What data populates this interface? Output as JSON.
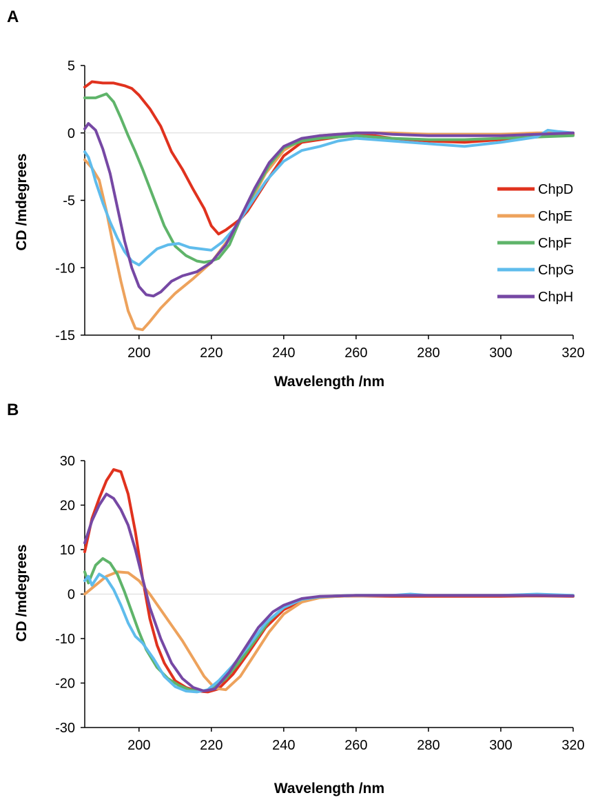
{
  "chart_data": [
    {
      "panel_label": "A",
      "type": "line",
      "xlabel": "Wavelength /nm",
      "ylabel": "CD /mdegrees",
      "xlim": [
        185,
        320
      ],
      "ylim": [
        -15,
        5
      ],
      "xticks": [
        200,
        220,
        240,
        260,
        280,
        300,
        320
      ],
      "yticks": [
        -15,
        -10,
        -5,
        0,
        5
      ],
      "grid": false,
      "legend": {
        "placement": "right"
      },
      "series": [
        {
          "name": "ChpD",
          "color": "#e0321e",
          "x": [
            185,
            187,
            190,
            193,
            196,
            198,
            200,
            203,
            206,
            209,
            212,
            215,
            218,
            220,
            222,
            224,
            226,
            228,
            230,
            235,
            240,
            245,
            250,
            255,
            260,
            265,
            270,
            280,
            290,
            300,
            310,
            320
          ],
          "y": [
            3.4,
            3.8,
            3.7,
            3.7,
            3.5,
            3.3,
            2.8,
            1.8,
            0.5,
            -1.4,
            -2.7,
            -4.2,
            -5.6,
            -6.9,
            -7.5,
            -7.2,
            -6.8,
            -6.4,
            -5.8,
            -3.7,
            -1.7,
            -0.7,
            -0.5,
            -0.3,
            -0.1,
            -0.2,
            -0.4,
            -0.6,
            -0.7,
            -0.5,
            -0.3,
            -0.1
          ]
        },
        {
          "name": "ChpE",
          "color": "#eda25c",
          "x": [
            185,
            187,
            189,
            191,
            193,
            195,
            197,
            199,
            201,
            203,
            206,
            210,
            215,
            220,
            225,
            230,
            235,
            240,
            245,
            250,
            255,
            260,
            270,
            280,
            290,
            300,
            310,
            320
          ],
          "y": [
            -2.0,
            -2.6,
            -3.5,
            -5.8,
            -8.5,
            -11.0,
            -13.2,
            -14.5,
            -14.6,
            -14.0,
            -13.0,
            -11.9,
            -10.8,
            -9.6,
            -7.8,
            -5.5,
            -3.0,
            -1.3,
            -0.5,
            -0.2,
            -0.1,
            0.0,
            0.0,
            -0.1,
            -0.1,
            -0.1,
            0.0,
            0.0
          ]
        },
        {
          "name": "ChpF",
          "color": "#5fb46a",
          "x": [
            185,
            188,
            191,
            193,
            195,
            197,
            199,
            201,
            204,
            207,
            210,
            213,
            216,
            218,
            220,
            222,
            225,
            228,
            232,
            236,
            240,
            245,
            250,
            255,
            260,
            270,
            280,
            290,
            300,
            310,
            320
          ],
          "y": [
            2.6,
            2.6,
            2.9,
            2.3,
            1.1,
            -0.2,
            -1.4,
            -2.7,
            -4.8,
            -6.9,
            -8.4,
            -9.1,
            -9.5,
            -9.6,
            -9.5,
            -9.3,
            -8.3,
            -6.4,
            -4.3,
            -2.4,
            -1.1,
            -0.6,
            -0.4,
            -0.3,
            -0.2,
            -0.4,
            -0.5,
            -0.5,
            -0.4,
            -0.3,
            -0.2
          ]
        },
        {
          "name": "ChpG",
          "color": "#5fbcec",
          "x": [
            185,
            186,
            187,
            188,
            190,
            192,
            194,
            196,
            198,
            200,
            202,
            205,
            208,
            211,
            214,
            217,
            220,
            223,
            226,
            230,
            235,
            240,
            245,
            250,
            255,
            260,
            265,
            270,
            280,
            290,
            300,
            310,
            313,
            316,
            320
          ],
          "y": [
            -1.4,
            -1.8,
            -2.6,
            -3.6,
            -5.2,
            -6.6,
            -7.8,
            -8.8,
            -9.5,
            -9.8,
            -9.3,
            -8.6,
            -8.3,
            -8.2,
            -8.5,
            -8.6,
            -8.7,
            -8.1,
            -7.2,
            -5.6,
            -3.6,
            -2.1,
            -1.3,
            -1.0,
            -0.6,
            -0.4,
            -0.5,
            -0.6,
            -0.8,
            -1.0,
            -0.7,
            -0.3,
            0.2,
            0.1,
            0.0
          ]
        },
        {
          "name": "ChpH",
          "color": "#7648a4",
          "x": [
            185,
            186,
            188,
            190,
            192,
            194,
            196,
            198,
            200,
            202,
            204,
            206,
            209,
            212,
            216,
            220,
            224,
            228,
            232,
            236,
            240,
            245,
            250,
            255,
            260,
            265,
            270,
            280,
            290,
            300,
            310,
            320
          ],
          "y": [
            0.3,
            0.7,
            0.2,
            -1.2,
            -3.0,
            -5.5,
            -8.0,
            -10.0,
            -11.4,
            -12.0,
            -12.1,
            -11.8,
            -11.0,
            -10.6,
            -10.3,
            -9.6,
            -8.3,
            -6.3,
            -4.1,
            -2.2,
            -1.0,
            -0.4,
            -0.2,
            -0.1,
            0.0,
            0.0,
            -0.1,
            -0.2,
            -0.2,
            -0.2,
            -0.1,
            0.0
          ]
        }
      ]
    },
    {
      "panel_label": "B",
      "type": "line",
      "xlabel": "Wavelength /nm",
      "ylabel": "CD /mdegrees",
      "xlim": [
        185,
        320
      ],
      "ylim": [
        -30,
        30
      ],
      "xticks": [
        200,
        220,
        240,
        260,
        280,
        300,
        320
      ],
      "yticks": [
        -30,
        -20,
        -10,
        0,
        10,
        20,
        30
      ],
      "grid": false,
      "series": [
        {
          "name": "ChpD",
          "color": "#e0321e",
          "x": [
            185,
            187,
            189,
            191,
            193,
            195,
            197,
            199,
            201,
            203,
            205,
            207,
            210,
            213,
            216,
            219,
            222,
            226,
            230,
            235,
            240,
            245,
            250,
            255,
            260,
            270,
            280,
            290,
            300,
            310,
            320
          ],
          "y": [
            9.5,
            17.0,
            21.5,
            25.5,
            28.0,
            27.5,
            22.5,
            14.0,
            3.5,
            -5.5,
            -11.5,
            -15.5,
            -19.5,
            -21.0,
            -21.8,
            -22.0,
            -21.3,
            -18.0,
            -13.5,
            -7.5,
            -3.5,
            -1.5,
            -0.7,
            -0.5,
            -0.4,
            -0.5,
            -0.5,
            -0.5,
            -0.5,
            -0.4,
            -0.5
          ]
        },
        {
          "name": "ChpE",
          "color": "#eda25c",
          "x": [
            185,
            188,
            191,
            194,
            197,
            200,
            203,
            206,
            209,
            212,
            215,
            218,
            221,
            224,
            228,
            232,
            236,
            240,
            245,
            250,
            255,
            260,
            270,
            280,
            290,
            300,
            310,
            320
          ],
          "y": [
            0.0,
            2.0,
            4.0,
            5.0,
            4.8,
            3.0,
            0.0,
            -3.5,
            -7.0,
            -10.5,
            -14.5,
            -18.5,
            -21.2,
            -21.5,
            -18.5,
            -13.5,
            -8.5,
            -4.5,
            -1.8,
            -0.8,
            -0.5,
            -0.4,
            -0.3,
            -0.3,
            -0.3,
            -0.3,
            -0.3,
            -0.3
          ]
        },
        {
          "name": "ChpF",
          "color": "#5fb46a",
          "x": [
            185,
            186,
            188,
            190,
            192,
            194,
            196,
            198,
            200,
            202,
            205,
            208,
            211,
            214,
            217,
            220,
            224,
            228,
            232,
            236,
            240,
            245,
            250,
            255,
            260,
            270,
            280,
            290,
            300,
            310,
            320
          ],
          "y": [
            5.0,
            2.5,
            6.5,
            8.0,
            7.0,
            4.5,
            0.5,
            -4.0,
            -8.5,
            -12.5,
            -16.5,
            -19.0,
            -20.5,
            -21.5,
            -21.8,
            -21.5,
            -19.0,
            -15.0,
            -10.5,
            -6.0,
            -3.0,
            -1.2,
            -0.6,
            -0.4,
            -0.3,
            -0.3,
            -0.3,
            -0.3,
            -0.3,
            -0.3,
            -0.4
          ]
        },
        {
          "name": "ChpG",
          "color": "#5fbcec",
          "x": [
            185,
            186,
            187,
            189,
            191,
            193,
            195,
            197,
            199,
            201,
            204,
            207,
            210,
            213,
            216,
            219,
            222,
            226,
            230,
            235,
            240,
            245,
            250,
            255,
            260,
            270,
            275,
            280,
            290,
            300,
            310,
            320
          ],
          "y": [
            3.0,
            4.0,
            2.0,
            4.5,
            3.5,
            1.0,
            -2.5,
            -6.5,
            -9.5,
            -11.0,
            -14.5,
            -18.5,
            -20.8,
            -21.8,
            -22.0,
            -21.5,
            -19.5,
            -16.0,
            -12.0,
            -6.5,
            -3.0,
            -1.2,
            -0.6,
            -0.4,
            -0.3,
            -0.3,
            0.0,
            -0.3,
            -0.3,
            -0.3,
            0.0,
            -0.3
          ]
        },
        {
          "name": "ChpH",
          "color": "#7648a4",
          "x": [
            185,
            187,
            189,
            191,
            193,
            195,
            197,
            199,
            201,
            203,
            206,
            209,
            212,
            215,
            218,
            221,
            225,
            229,
            233,
            237,
            240,
            245,
            250,
            255,
            260,
            270,
            280,
            290,
            300,
            310,
            320
          ],
          "y": [
            11.5,
            16.5,
            20.0,
            22.5,
            21.5,
            19.0,
            15.5,
            10.0,
            3.5,
            -3.0,
            -10.0,
            -15.5,
            -19.0,
            -21.0,
            -21.8,
            -21.3,
            -17.5,
            -12.5,
            -7.5,
            -4.0,
            -2.5,
            -1.0,
            -0.5,
            -0.4,
            -0.3,
            -0.3,
            -0.3,
            -0.3,
            -0.3,
            -0.3,
            -0.4
          ]
        }
      ]
    }
  ]
}
